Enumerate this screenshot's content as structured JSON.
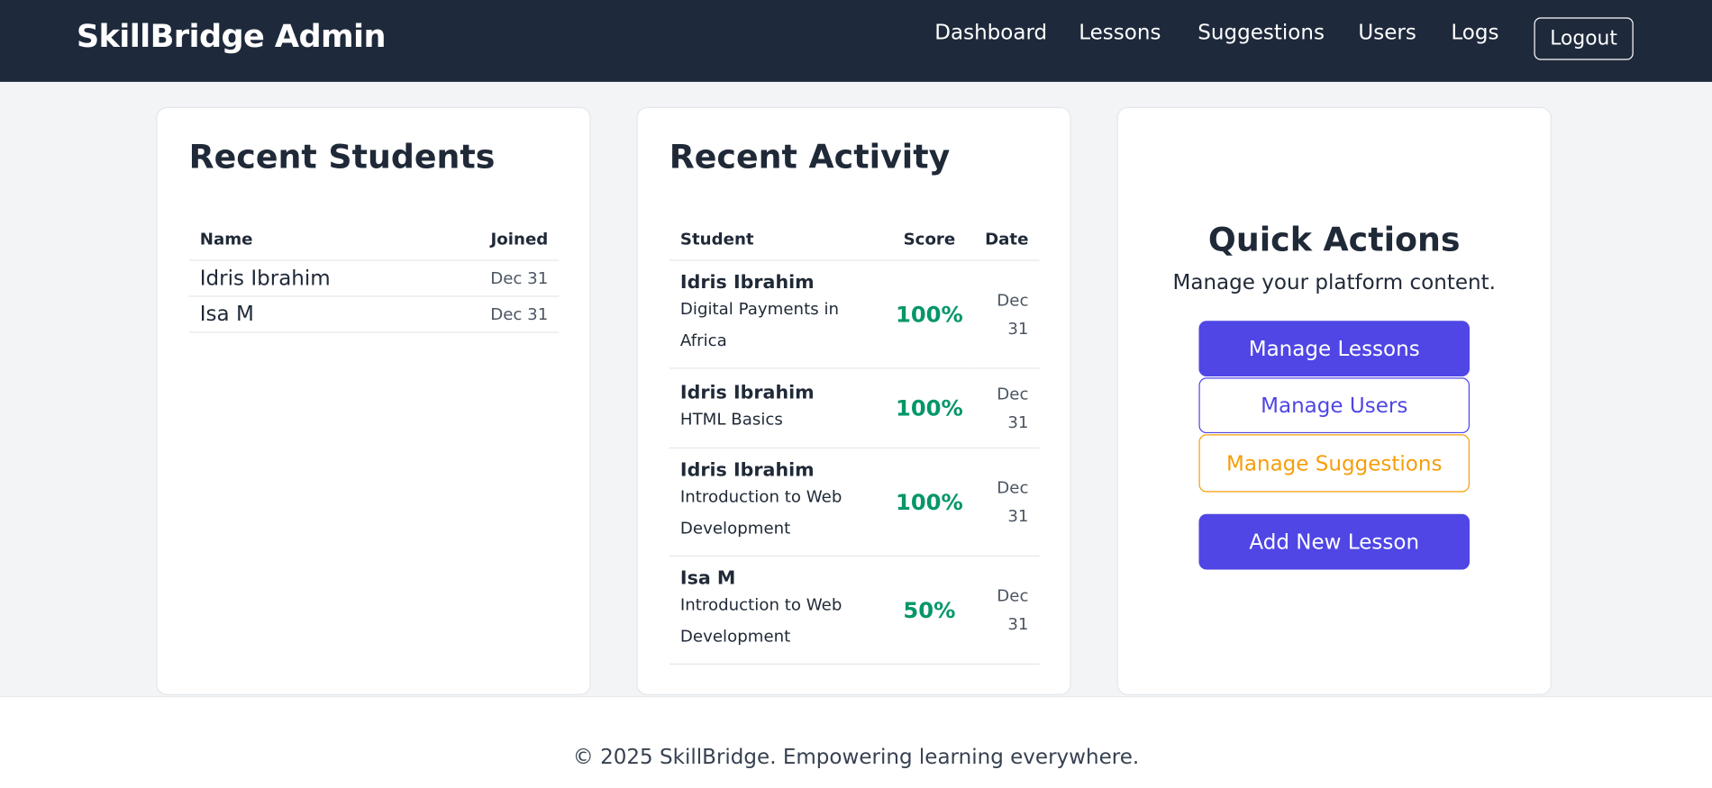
{
  "header": {
    "brand": "SkillBridge Admin",
    "nav": [
      "Dashboard",
      "Lessons",
      "Suggestions",
      "Users",
      "Logs"
    ],
    "logout": "Logout"
  },
  "students": {
    "title": "Recent Students",
    "columns": [
      "Name",
      "Joined"
    ],
    "rows": [
      [
        "Idris Ibrahim",
        "Dec 31"
      ],
      [
        "Isa M",
        "Dec 31"
      ]
    ]
  },
  "activity": {
    "title": "Recent Activity",
    "columns": [
      "Student",
      "Score",
      "Date"
    ],
    "rows": [
      {
        "student": "Idris Ibrahim",
        "lesson": "Digital Payments in Africa",
        "score": "100%",
        "date": "Dec 31"
      },
      {
        "student": "Idris Ibrahim",
        "lesson": "HTML Basics",
        "score": "100%",
        "date": "Dec 31"
      },
      {
        "student": "Idris Ibrahim",
        "lesson": "Introduction to Web Development",
        "score": "100%",
        "date": "Dec 31"
      },
      {
        "student": "Isa M",
        "lesson": "Introduction to Web Development",
        "score": "50%",
        "date": "Dec 31"
      }
    ]
  },
  "quick_actions": {
    "title": "Quick Actions",
    "subtitle": "Manage your platform content.",
    "buttons": [
      "Manage Lessons",
      "Manage Users",
      "Manage Suggestions",
      "Add New Lesson"
    ]
  },
  "footer": {
    "text": "© 2025 SkillBridge. Empowering learning everywhere."
  }
}
